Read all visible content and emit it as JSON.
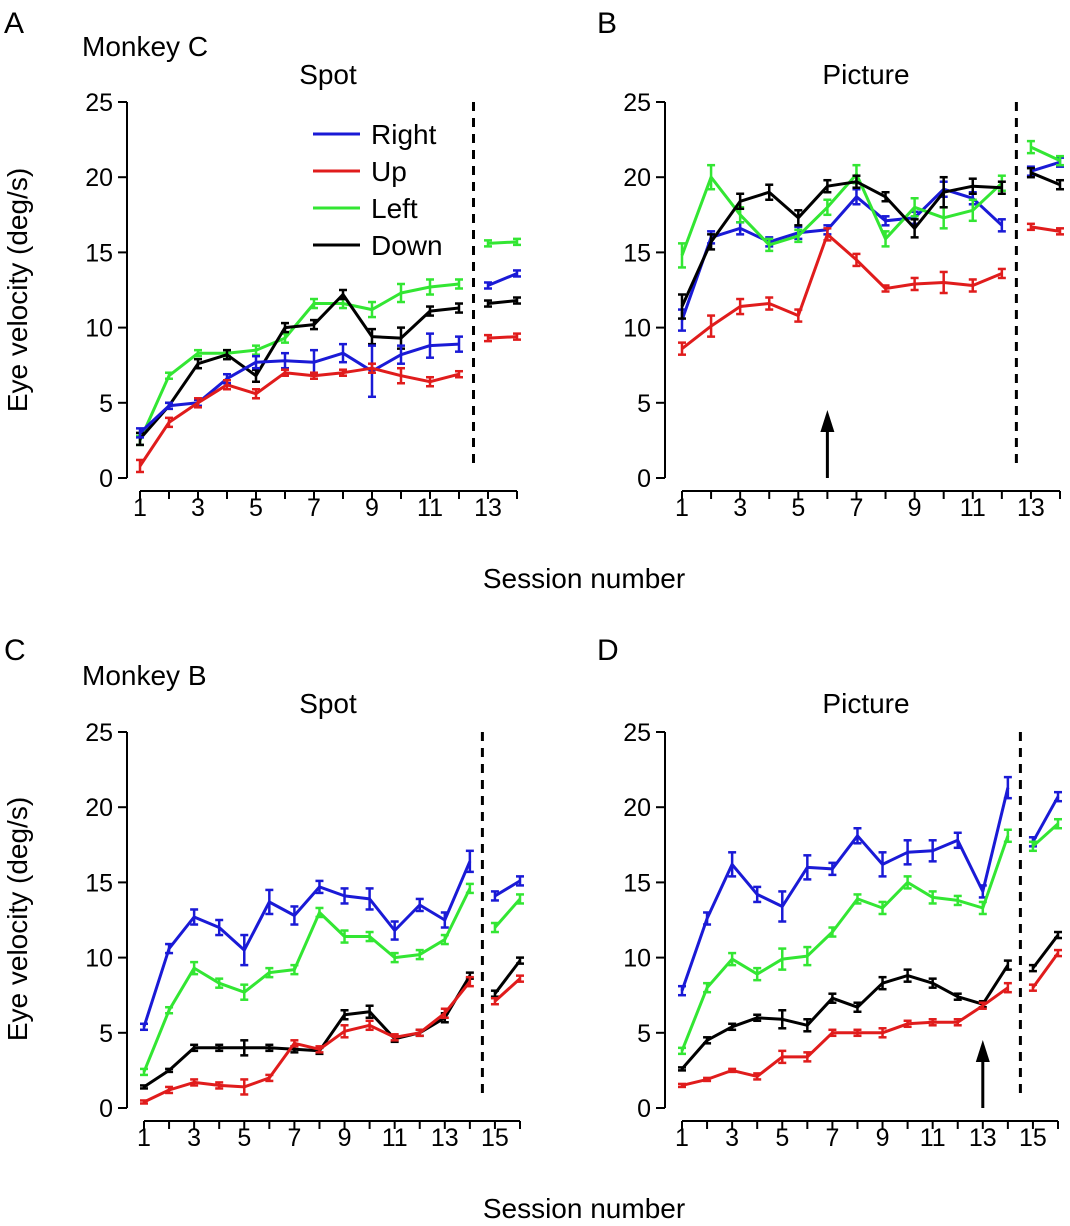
{
  "xlabel": "Session number",
  "ylabel": "Eye velocity (deg/s)",
  "chart_data": [
    {
      "panel": "A",
      "monkey": "Monkey C",
      "title": "Spot",
      "type": "line",
      "xlabel": "Session number",
      "ylabel": "Eye velocity (deg/s)",
      "ylim": [
        0,
        25
      ],
      "yticks": [
        "0",
        "5",
        "10",
        "15",
        "20",
        "25"
      ],
      "xlim": [
        0.8,
        14.3
      ],
      "xticks": [
        "1",
        "3",
        "5",
        "7",
        "9",
        "11",
        "13"
      ],
      "divider_x": 12.5,
      "arrow_x": null,
      "legend": [
        "Right",
        "Up",
        "Left",
        "Down"
      ],
      "colors": {
        "Right": "#1a1ad6",
        "Up": "#e01c1c",
        "Left": "#33e633",
        "Down": "#000000"
      },
      "series": [
        {
          "name": "Left",
          "values": [
            2.5,
            6.8,
            8.3,
            8.3,
            8.5,
            9.3,
            11.6,
            11.6,
            11.2,
            12.3,
            12.7,
            12.9
          ],
          "errors": [
            0.3,
            0.2,
            0.2,
            0.2,
            0.3,
            0.3,
            0.3,
            0.3,
            0.5,
            0.6,
            0.5,
            0.3
          ],
          "post": [
            15.6,
            15.7
          ],
          "post_err": [
            0.2,
            0.2
          ]
        },
        {
          "name": "Down",
          "values": [
            2.6,
            4.8,
            7.6,
            8.2,
            6.8,
            10.0,
            10.2,
            12.2,
            9.4,
            9.3,
            11.1,
            11.3
          ],
          "errors": [
            0.4,
            0.2,
            0.3,
            0.3,
            0.4,
            0.3,
            0.3,
            0.3,
            0.5,
            0.7,
            0.3,
            0.3
          ],
          "post": [
            11.6,
            11.8
          ],
          "post_err": [
            0.2,
            0.2
          ]
        },
        {
          "name": "Right",
          "values": [
            3.0,
            4.8,
            5.0,
            6.6,
            7.7,
            7.8,
            7.7,
            8.3,
            7.1,
            8.2,
            8.8,
            8.9
          ],
          "errors": [
            0.3,
            0.2,
            0.2,
            0.3,
            0.4,
            0.5,
            0.8,
            0.6,
            1.7,
            0.6,
            0.8,
            0.5
          ],
          "post": [
            12.8,
            13.6
          ],
          "post_err": [
            0.2,
            0.2
          ]
        },
        {
          "name": "Up",
          "values": [
            0.8,
            3.7,
            5.0,
            6.2,
            5.6,
            7.0,
            6.8,
            7.0,
            7.3,
            6.8,
            6.4,
            6.9
          ],
          "errors": [
            0.4,
            0.3,
            0.3,
            0.3,
            0.3,
            0.2,
            0.2,
            0.2,
            0.3,
            0.5,
            0.3,
            0.2
          ],
          "post": [
            9.3,
            9.4
          ],
          "post_err": [
            0.2,
            0.2
          ]
        }
      ]
    },
    {
      "panel": "B",
      "monkey": "",
      "title": "Picture",
      "type": "line",
      "xlabel": "Session number",
      "ylabel": "",
      "ylim": [
        0,
        25
      ],
      "yticks": [
        "0",
        "5",
        "10",
        "15",
        "20",
        "25"
      ],
      "xlim": [
        0.8,
        14.3
      ],
      "xticks": [
        "1",
        "3",
        "5",
        "7",
        "9",
        "11",
        "13"
      ],
      "divider_x": 12.5,
      "arrow_x": 6,
      "legend": [],
      "colors": {
        "Right": "#1a1ad6",
        "Up": "#e01c1c",
        "Left": "#33e633",
        "Down": "#000000"
      },
      "series": [
        {
          "name": "Right",
          "values": [
            10.5,
            16.0,
            16.6,
            15.7,
            16.3,
            16.5,
            18.7,
            17.1,
            17.3,
            19.2,
            18.6,
            16.8
          ],
          "errors": [
            0.7,
            0.4,
            0.4,
            0.3,
            0.4,
            0.3,
            0.5,
            0.3,
            0.4,
            0.5,
            0.4,
            0.4
          ],
          "post": [
            20.4,
            21.0
          ],
          "post_err": [
            0.3,
            0.3
          ]
        },
        {
          "name": "Left",
          "values": [
            14.8,
            20.0,
            17.5,
            15.5,
            16.1,
            18.0,
            20.2,
            15.9,
            18.0,
            17.3,
            17.8,
            19.6
          ],
          "errors": [
            0.8,
            0.8,
            0.5,
            0.4,
            0.4,
            0.5,
            0.6,
            0.5,
            0.6,
            0.7,
            0.7,
            0.5
          ],
          "post": [
            22.0,
            21.1
          ],
          "post_err": [
            0.4,
            0.3
          ]
        },
        {
          "name": "Down",
          "values": [
            11.4,
            15.7,
            18.4,
            19.0,
            17.3,
            19.4,
            19.7,
            18.7,
            16.6,
            19.0,
            19.4,
            19.3
          ],
          "errors": [
            0.8,
            0.5,
            0.5,
            0.5,
            0.5,
            0.4,
            0.4,
            0.3,
            0.6,
            1.0,
            0.5,
            0.4
          ],
          "post": [
            20.3,
            19.5
          ],
          "post_err": [
            0.3,
            0.3
          ]
        },
        {
          "name": "Up",
          "values": [
            8.6,
            10.1,
            11.4,
            11.6,
            10.8,
            16.2,
            14.5,
            12.6,
            12.9,
            13.0,
            12.8,
            13.6
          ],
          "errors": [
            0.4,
            0.7,
            0.5,
            0.4,
            0.4,
            0.4,
            0.4,
            0.2,
            0.4,
            0.7,
            0.4,
            0.3
          ],
          "post": [
            16.7,
            16.4
          ],
          "post_err": [
            0.2,
            0.2
          ]
        }
      ]
    },
    {
      "panel": "C",
      "monkey": "Monkey B",
      "title": "Spot",
      "type": "line",
      "xlabel": "Session number",
      "ylabel": "Eye velocity (deg/s)",
      "ylim": [
        0,
        25
      ],
      "yticks": [
        "0",
        "5",
        "10",
        "15",
        "20",
        "25"
      ],
      "xlim": [
        0.8,
        16.3
      ],
      "xticks": [
        "1",
        "3",
        "5",
        "7",
        "9",
        "11",
        "13",
        "15"
      ],
      "divider_x": 14.5,
      "arrow_x": null,
      "legend": [],
      "colors": {
        "Right": "#1a1ad6",
        "Up": "#e01c1c",
        "Left": "#33e633",
        "Down": "#000000"
      },
      "series": [
        {
          "name": "Right",
          "values": [
            5.4,
            10.6,
            12.7,
            12.0,
            10.5,
            13.7,
            12.8,
            14.7,
            14.1,
            13.9,
            11.8,
            13.5,
            12.5,
            16.4
          ],
          "errors": [
            0.2,
            0.3,
            0.5,
            0.5,
            1.0,
            0.8,
            0.6,
            0.4,
            0.5,
            0.7,
            0.6,
            0.4,
            0.5,
            0.7
          ],
          "post": [
            14.1,
            15.1
          ],
          "post_err": [
            0.3,
            0.3
          ]
        },
        {
          "name": "Left",
          "values": [
            2.4,
            6.5,
            9.3,
            8.3,
            7.7,
            9.0,
            9.2,
            13.0,
            11.4,
            11.4,
            10.0,
            10.2,
            11.2,
            14.6
          ],
          "errors": [
            0.2,
            0.2,
            0.4,
            0.3,
            0.5,
            0.3,
            0.3,
            0.3,
            0.4,
            0.3,
            0.3,
            0.3,
            0.3,
            0.3
          ],
          "post": [
            12.0,
            13.9
          ],
          "post_err": [
            0.3,
            0.3
          ]
        },
        {
          "name": "Down",
          "values": [
            1.4,
            2.5,
            4.0,
            4.0,
            4.0,
            4.0,
            3.9,
            3.8,
            6.2,
            6.4,
            4.6,
            5.0,
            6.0,
            8.8
          ],
          "errors": [
            0.1,
            0.1,
            0.2,
            0.2,
            0.5,
            0.2,
            0.2,
            0.2,
            0.3,
            0.4,
            0.2,
            0.2,
            0.3,
            0.2
          ],
          "post": [
            7.6,
            9.8
          ],
          "post_err": [
            0.2,
            0.2
          ]
        },
        {
          "name": "Up",
          "values": [
            0.4,
            1.2,
            1.7,
            1.5,
            1.4,
            2.0,
            4.3,
            3.9,
            5.1,
            5.5,
            4.7,
            5.0,
            6.3,
            8.4
          ],
          "errors": [
            0.1,
            0.2,
            0.2,
            0.2,
            0.5,
            0.2,
            0.2,
            0.2,
            0.4,
            0.3,
            0.2,
            0.2,
            0.3,
            0.3
          ],
          "post": [
            7.1,
            8.6
          ],
          "post_err": [
            0.2,
            0.2
          ]
        }
      ]
    },
    {
      "panel": "D",
      "monkey": "",
      "title": "Picture",
      "type": "line",
      "xlabel": "Session number",
      "ylabel": "",
      "ylim": [
        0,
        25
      ],
      "yticks": [
        "0",
        "5",
        "10",
        "15",
        "20",
        "25"
      ],
      "xlim": [
        0.8,
        16.3
      ],
      "xticks": [
        "1",
        "3",
        "5",
        "7",
        "9",
        "11",
        "13",
        "15"
      ],
      "divider_x": 14.5,
      "arrow_x": 13,
      "legend": [],
      "colors": {
        "Right": "#1a1ad6",
        "Up": "#e01c1c",
        "Left": "#33e633",
        "Down": "#000000"
      },
      "series": [
        {
          "name": "Right",
          "values": [
            7.8,
            12.6,
            16.2,
            14.2,
            13.4,
            16.0,
            15.9,
            18.1,
            16.2,
            17.0,
            17.1,
            17.8,
            14.4,
            21.3
          ],
          "errors": [
            0.3,
            0.4,
            0.8,
            0.5,
            1.0,
            0.8,
            0.4,
            0.5,
            0.8,
            0.8,
            0.7,
            0.5,
            0.4,
            0.7
          ],
          "post": [
            17.7,
            20.7
          ],
          "post_err": [
            0.3,
            0.3
          ]
        },
        {
          "name": "Left",
          "values": [
            3.8,
            8.0,
            9.9,
            8.9,
            9.9,
            10.1,
            11.7,
            13.9,
            13.3,
            15.0,
            14.0,
            13.8,
            13.3,
            18.1
          ],
          "errors": [
            0.2,
            0.3,
            0.4,
            0.4,
            0.7,
            0.6,
            0.3,
            0.3,
            0.4,
            0.4,
            0.4,
            0.3,
            0.4,
            0.4
          ],
          "post": [
            17.4,
            18.9
          ],
          "post_err": [
            0.3,
            0.3
          ]
        },
        {
          "name": "Down",
          "values": [
            2.6,
            4.5,
            5.4,
            6.0,
            5.9,
            5.5,
            7.3,
            6.7,
            8.3,
            8.8,
            8.3,
            7.4,
            6.9,
            9.5
          ],
          "errors": [
            0.1,
            0.2,
            0.2,
            0.2,
            0.6,
            0.4,
            0.3,
            0.3,
            0.4,
            0.4,
            0.3,
            0.2,
            0.2,
            0.3
          ],
          "post": [
            9.3,
            11.5
          ],
          "post_err": [
            0.2,
            0.2
          ]
        },
        {
          "name": "Up",
          "values": [
            1.5,
            1.9,
            2.5,
            2.1,
            3.4,
            3.4,
            5.0,
            5.0,
            5.0,
            5.6,
            5.7,
            5.7,
            6.8,
            8.0
          ],
          "errors": [
            0.1,
            0.1,
            0.1,
            0.2,
            0.4,
            0.3,
            0.2,
            0.2,
            0.3,
            0.2,
            0.2,
            0.2,
            0.2,
            0.3
          ],
          "post": [
            8.0,
            10.3
          ],
          "post_err": [
            0.2,
            0.2
          ]
        }
      ]
    }
  ]
}
